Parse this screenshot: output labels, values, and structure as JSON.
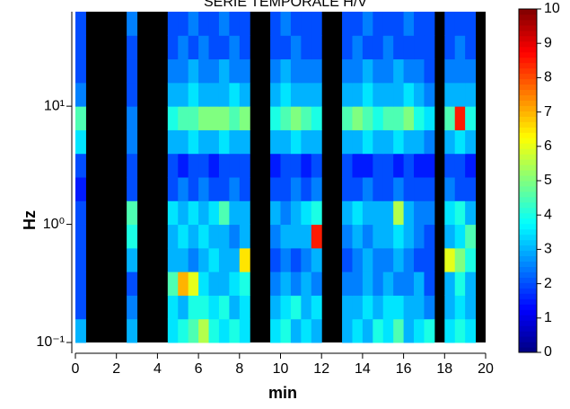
{
  "chart_data": {
    "type": "heatmap",
    "title": "SERIE TEMPORALE H/V",
    "xlabel": "min",
    "ylabel": "Hz",
    "xlim": [
      0,
      20
    ],
    "xticks": [
      0,
      2,
      4,
      6,
      8,
      10,
      12,
      14,
      16,
      18,
      20
    ],
    "ylim": [
      0.1,
      63.1
    ],
    "ylog": true,
    "yticks": [
      {
        "value": 0.1,
        "label": "10⁻¹"
      },
      {
        "value": 1,
        "label": "10⁰"
      },
      {
        "value": 10,
        "label": "10¹"
      }
    ],
    "zlim": [
      0,
      10
    ],
    "zticks": [
      0,
      1,
      2,
      3,
      4,
      5,
      6,
      7,
      8,
      9,
      10
    ],
    "colormap": "jet",
    "z": [
      [
        3,
        null,
        null,
        null,
        null,
        3,
        null,
        null,
        null,
        3.5,
        4,
        4.5,
        5.5,
        4,
        3.5,
        4,
        3.5,
        null,
        null,
        3.5,
        4,
        3,
        3.5,
        3,
        null,
        null,
        3,
        3.5,
        3,
        4,
        3.5,
        4.5,
        3,
        3.5,
        4,
        null,
        3.5,
        4,
        3.5,
        null
      ],
      [
        2,
        null,
        null,
        null,
        null,
        2.5,
        null,
        null,
        null,
        3.5,
        3,
        4,
        4,
        3.5,
        4,
        3,
        3.5,
        null,
        null,
        3,
        3.5,
        4,
        3,
        3.5,
        null,
        null,
        3,
        3,
        3.5,
        3,
        3.5,
        3.5,
        3,
        3,
        2.5,
        null,
        3,
        3.5,
        3,
        null
      ],
      [
        2,
        null,
        null,
        null,
        null,
        2,
        null,
        null,
        null,
        4.5,
        7,
        6,
        3.5,
        3,
        3,
        3.5,
        4,
        null,
        null,
        2.5,
        3,
        2.5,
        3,
        2.5,
        null,
        null,
        2.5,
        2.5,
        3,
        2.5,
        3,
        2.5,
        2.5,
        3,
        2,
        null,
        3,
        4,
        3,
        null
      ],
      [
        2,
        null,
        null,
        null,
        null,
        3,
        null,
        null,
        null,
        3,
        3,
        2.5,
        3,
        3.5,
        3,
        3,
        6.5,
        null,
        null,
        2,
        2.5,
        2,
        2.5,
        3,
        null,
        null,
        2,
        2.5,
        3,
        2.5,
        2.5,
        3,
        2.5,
        2,
        2,
        null,
        6,
        5,
        4,
        null
      ],
      [
        2,
        null,
        null,
        null,
        null,
        4,
        null,
        null,
        null,
        3,
        3.5,
        3,
        3.5,
        3,
        3,
        2.5,
        3,
        null,
        null,
        2.5,
        3,
        3,
        3,
        8.5,
        null,
        null,
        2.5,
        3,
        2.5,
        3,
        3,
        3.5,
        3,
        2.5,
        2,
        null,
        3,
        3.5,
        4.5,
        null
      ],
      [
        2,
        null,
        null,
        null,
        null,
        4.5,
        null,
        null,
        null,
        3.5,
        3,
        3.5,
        3,
        3.5,
        4.5,
        3,
        3,
        null,
        null,
        3,
        2.5,
        3,
        3.5,
        4,
        null,
        null,
        3,
        3.5,
        3,
        3,
        3,
        5.5,
        3,
        2.5,
        2.5,
        null,
        3.5,
        4,
        3,
        null
      ],
      [
        1.5,
        null,
        null,
        null,
        null,
        2,
        null,
        null,
        null,
        2,
        2.5,
        2,
        2.5,
        2,
        2,
        2.5,
        2,
        null,
        null,
        2,
        2,
        2.5,
        2,
        2.5,
        null,
        null,
        2,
        2,
        2.5,
        2,
        2,
        2.5,
        2,
        2,
        2,
        null,
        2.5,
        2,
        2,
        null
      ],
      [
        2,
        null,
        null,
        null,
        null,
        2,
        null,
        null,
        null,
        2,
        1.5,
        2,
        2,
        1.5,
        2,
        2,
        2,
        null,
        null,
        1.5,
        2,
        2,
        1.5,
        2,
        null,
        null,
        2,
        1.5,
        1.5,
        2,
        2,
        1.5,
        2,
        1.5,
        1.5,
        null,
        2,
        2,
        1.5,
        null
      ],
      [
        3.5,
        null,
        null,
        null,
        null,
        2.5,
        null,
        null,
        null,
        3,
        3,
        3.5,
        3,
        3,
        3.5,
        3,
        3,
        null,
        null,
        3,
        3,
        3.5,
        3,
        3,
        null,
        null,
        3,
        3,
        3.5,
        3,
        3,
        3.5,
        3,
        3,
        2.5,
        null,
        3,
        3.5,
        3,
        null
      ],
      [
        4.5,
        null,
        null,
        null,
        null,
        2.5,
        null,
        null,
        null,
        4,
        4.5,
        4.5,
        5,
        5,
        5,
        4.5,
        5,
        null,
        null,
        4,
        4.5,
        5,
        4.5,
        4,
        null,
        null,
        4.5,
        5,
        4.5,
        4,
        4.5,
        4.5,
        5,
        4,
        3.5,
        null,
        4.5,
        8.5,
        4,
        null
      ],
      [
        2.5,
        null,
        null,
        null,
        null,
        2,
        null,
        null,
        null,
        3,
        3,
        3.5,
        3,
        3,
        3,
        3.5,
        3,
        null,
        null,
        3,
        3.5,
        3,
        3,
        3,
        null,
        null,
        3,
        3,
        3.5,
        3,
        3,
        3,
        3.5,
        3,
        2.5,
        null,
        3,
        3,
        3,
        null
      ],
      [
        2,
        null,
        null,
        null,
        null,
        2,
        null,
        null,
        null,
        2.5,
        2.5,
        3,
        2.5,
        2.5,
        3,
        2.5,
        2.5,
        null,
        null,
        2.5,
        3,
        2.5,
        2.5,
        2.5,
        null,
        null,
        2.5,
        2.5,
        3,
        2.5,
        2.5,
        3,
        2.5,
        2.5,
        2,
        null,
        2.5,
        2.5,
        2.5,
        null
      ],
      [
        2,
        null,
        null,
        null,
        null,
        2,
        null,
        null,
        null,
        2,
        2.5,
        2,
        2.5,
        2,
        2,
        2.5,
        2,
        null,
        null,
        2,
        2,
        2.5,
        2,
        2,
        null,
        null,
        2,
        2.5,
        2,
        2,
        2.5,
        2,
        2,
        2,
        2,
        null,
        2,
        2.5,
        2,
        null
      ],
      [
        2,
        null,
        null,
        null,
        null,
        2.5,
        null,
        null,
        null,
        2,
        2,
        2.5,
        2,
        2,
        2.5,
        2,
        2,
        null,
        null,
        2,
        2.5,
        2,
        2,
        2,
        null,
        null,
        2,
        2,
        2.5,
        2,
        2,
        2,
        2.5,
        2,
        2,
        null,
        2,
        2,
        2,
        null
      ]
    ]
  }
}
